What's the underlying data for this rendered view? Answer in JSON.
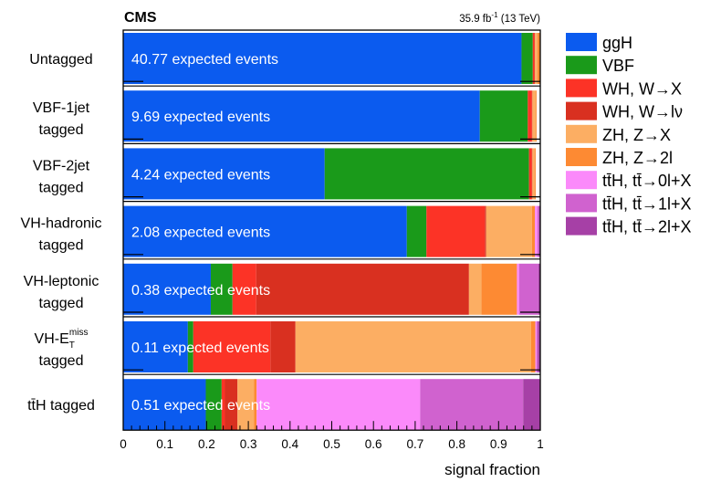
{
  "chart_data": {
    "type": "bar",
    "orientation": "horizontal",
    "stacked": true,
    "experiment": "CMS",
    "luminosity": "35.9 fb",
    "luminosity_exponent": "-1",
    "energy": "(13 TeV)",
    "xlabel": "signal fraction",
    "xlim": [
      0,
      1
    ],
    "xticks": [
      "0",
      "0.1",
      "0.2",
      "0.3",
      "0.4",
      "0.5",
      "0.6",
      "0.7",
      "0.8",
      "0.9",
      "1"
    ],
    "legend_position": "right",
    "categories": [
      {
        "lines": [
          "Untagged"
        ],
        "events": "40.77 expected events"
      },
      {
        "lines": [
          "VBF-1jet",
          "tagged"
        ],
        "events": "9.69 expected events"
      },
      {
        "lines": [
          "VBF-2jet",
          "tagged"
        ],
        "events": "4.24 expected events"
      },
      {
        "lines": [
          "VH-hadronic",
          "tagged"
        ],
        "events": "2.08 expected events"
      },
      {
        "lines": [
          "VH-leptonic",
          "tagged"
        ],
        "events": "0.38 expected events"
      },
      {
        "lines": [
          "VH-E",
          "tagged"
        ],
        "sup": "miss",
        "sub": "T",
        "events": "0.11 expected events"
      },
      {
        "lines": [
          "tt̄H tagged"
        ],
        "events": "0.51 expected events"
      }
    ],
    "series": [
      {
        "name": "ggH",
        "color": "#0b5bef",
        "values": [
          0.955,
          0.855,
          0.483,
          0.68,
          0.21,
          0.155,
          0.198
        ]
      },
      {
        "name": "VBF",
        "color": "#1a9a1a",
        "values": [
          0.027,
          0.115,
          0.49,
          0.047,
          0.052,
          0.013,
          0.038
        ]
      },
      {
        "name": "WH, W→X",
        "color": "#fc3326",
        "values": [
          0.004,
          0.01,
          0.007,
          0.14,
          0.057,
          0.185,
          0.008
        ]
      },
      {
        "name": "WH, W→lν",
        "color": "#d93020",
        "values": [
          0.001,
          0.001,
          0.001,
          0.003,
          0.51,
          0.06,
          0.03
        ]
      },
      {
        "name": "ZH, Z→X",
        "color": "#fcae63",
        "values": [
          0.006,
          0.008,
          0.006,
          0.11,
          0.03,
          0.565,
          0.04
        ]
      },
      {
        "name": "ZH, Z→2l",
        "color": "#fd8a33",
        "values": [
          0.007,
          0.002,
          0.002,
          0.007,
          0.085,
          0.01,
          0.006
        ]
      },
      {
        "name": "tt̄H, tt̄→0l+X",
        "color": "#fb8afa",
        "values": [
          0.0,
          0.0,
          0.0,
          0.006,
          0.005,
          0.003,
          0.392
        ]
      },
      {
        "name": "tt̄H, tt̄→1l+X",
        "color": "#d062cf",
        "values": [
          0.0,
          0.0,
          0.0,
          0.004,
          0.046,
          0.003,
          0.247
        ]
      },
      {
        "name": "tt̄H, tt̄→2l+X",
        "color": "#a640a6",
        "values": [
          0.0,
          0.0,
          0.0,
          0.003,
          0.005,
          0.006,
          0.041
        ]
      }
    ]
  }
}
